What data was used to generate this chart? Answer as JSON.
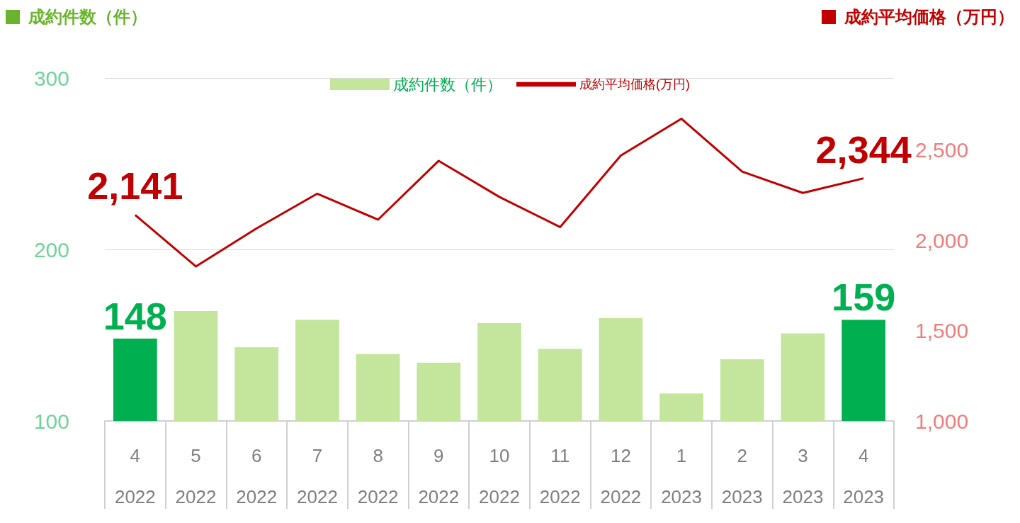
{
  "chart_data": {
    "type": "bar",
    "ylabel": "成約件数（件）",
    "y2label": "成約平均価格（万円）",
    "categories": [
      "4\n2022",
      "5\n2022",
      "6\n2022",
      "7\n2022",
      "8\n2022",
      "9\n2022",
      "10\n2022",
      "11\n2022",
      "12\n2022",
      "1\n2023",
      "2\n2023",
      "3\n2023",
      "4\n2023"
    ],
    "series": [
      {
        "name": "成約件数（件）",
        "color": "#c3e59c",
        "colors": [
          "#00b050",
          "#c3e59c",
          "#c3e59c",
          "#c3e59c",
          "#c3e59c",
          "#c3e59c",
          "#c3e59c",
          "#c3e59c",
          "#c3e59c",
          "#c3e59c",
          "#c3e59c",
          "#c3e59c",
          "#00b050"
        ],
        "values": [
          148,
          164,
          143,
          159,
          139,
          134,
          157,
          142,
          160,
          116,
          136,
          151,
          159
        ],
        "value_labels": [
          "148",
          null,
          null,
          null,
          null,
          null,
          null,
          null,
          null,
          null,
          null,
          null,
          "159"
        ]
      },
      {
        "name": "成約平均価格(万円)",
        "type": "line",
        "axis": "y2",
        "color": "#c00000",
        "values": [
          2141,
          1856,
          2067,
          2259,
          2115,
          2441,
          2241,
          2074,
          2470,
          2674,
          2381,
          2263,
          2344
        ],
        "value_labels": [
          "2,141",
          null,
          null,
          null,
          null,
          null,
          null,
          null,
          null,
          null,
          null,
          null,
          "2,344"
        ]
      }
    ],
    "ylim": [
      100,
      300
    ],
    "yticks": [
      100,
      200,
      300
    ],
    "y2lim": [
      1000,
      2900
    ],
    "y2ticks": [
      {
        "value": 1000,
        "label": "1,000"
      },
      {
        "value": 1500,
        "label": "1,500"
      },
      {
        "value": 2000,
        "label": "2,000"
      },
      {
        "value": 2500,
        "label": "2,500"
      }
    ],
    "grid": "y",
    "legend": "top",
    "marker": "none"
  }
}
